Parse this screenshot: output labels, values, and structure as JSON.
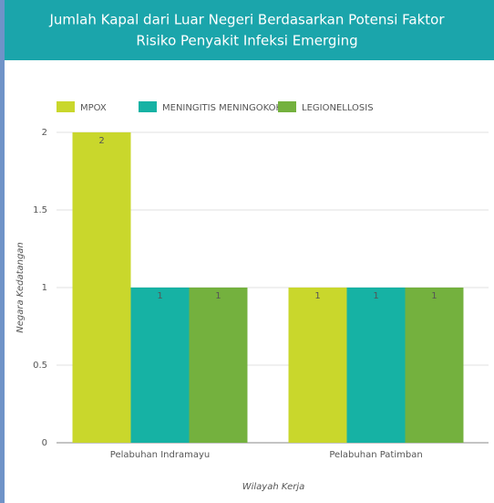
{
  "chart_data": {
    "type": "bar",
    "title": [
      "Jumlah Kapal dari Luar Negeri Berdasarkan Potensi Faktor",
      "Risiko Penyakit Infeksi Emerging"
    ],
    "x_label": "Wilayah Kerja",
    "y_label": "Negara Kedatangan",
    "categories": [
      "Pelabuhan Indramayu",
      "Pelabuhan Patimban"
    ],
    "series": [
      {
        "name": "MPOX",
        "color": "#c9d72c",
        "values": [
          2,
          1
        ]
      },
      {
        "name": "MENINGITIS MENINGOKOKUS",
        "color": "#16b2a4",
        "values": [
          1,
          1
        ]
      },
      {
        "name": "LEGIONELLOSIS",
        "color": "#74b13e",
        "values": [
          1,
          1
        ]
      }
    ],
    "ylim": [
      0,
      2
    ],
    "yticks": [
      0,
      0.5,
      1,
      1.5,
      2
    ],
    "grid": true,
    "legend": "top"
  }
}
